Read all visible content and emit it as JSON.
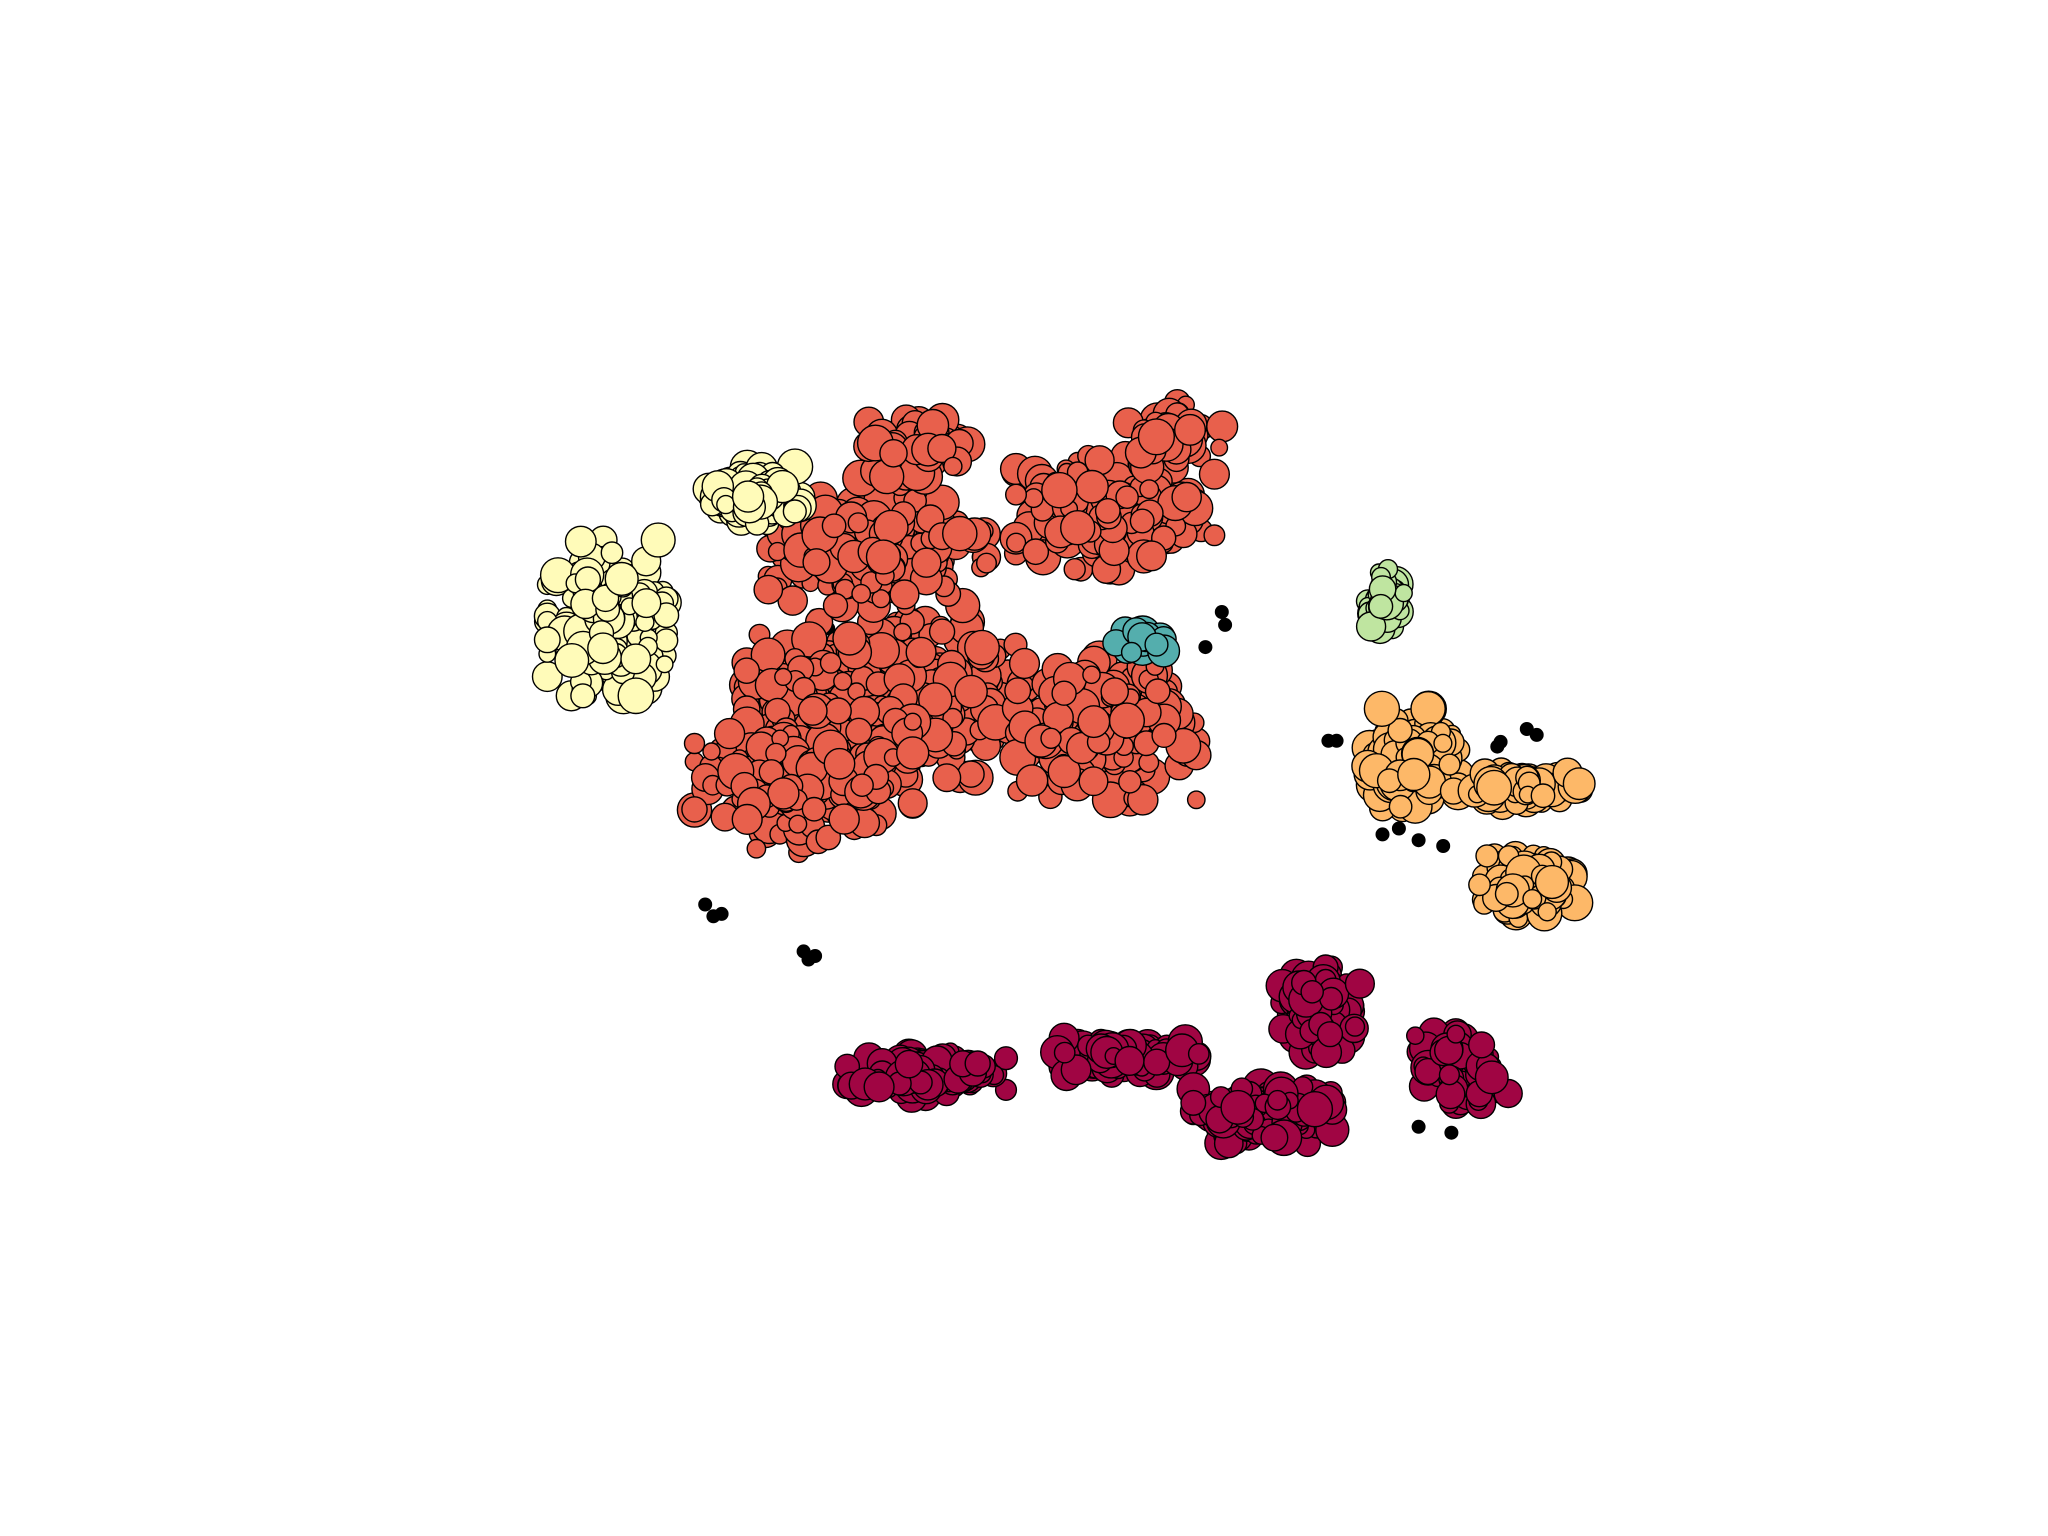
{
  "chart_data": {
    "type": "scatter",
    "title": "",
    "xlabel": "",
    "ylabel": "",
    "axes_visible": false,
    "grid": false,
    "legend": "none",
    "xlim": [
      0,
      100
    ],
    "ylim": [
      0,
      100
    ],
    "series": [
      {
        "key": "cluster-red",
        "color": "#e8604c",
        "marker": "circle",
        "approx_point_count": 1650,
        "regions": [
          {
            "cx": 41.5,
            "cy": 56.0,
            "sx": 7.0,
            "sy": 5.5,
            "n": 600
          },
          {
            "cx": 36.5,
            "cy": 49.0,
            "sx": 5.5,
            "sy": 5.0,
            "n": 220
          },
          {
            "cx": 41.0,
            "cy": 69.5,
            "sx": 5.5,
            "sy": 4.5,
            "n": 260
          },
          {
            "cx": 55.0,
            "cy": 53.5,
            "sx": 4.5,
            "sy": 5.0,
            "n": 230
          },
          {
            "cx": 55.5,
            "cy": 72.0,
            "sx": 5.0,
            "sy": 4.0,
            "n": 230
          },
          {
            "cx": 43.5,
            "cy": 77.5,
            "sx": 2.5,
            "sy": 2.0,
            "n": 70
          },
          {
            "cx": 59.0,
            "cy": 79.0,
            "sx": 2.5,
            "sy": 2.0,
            "n": 50
          }
        ]
      },
      {
        "key": "cluster-yellow",
        "color": "#fffbb9",
        "marker": "circle",
        "approx_point_count": 300,
        "regions": [
          {
            "cx": 24.5,
            "cy": 63.0,
            "sx": 3.0,
            "sy": 5.5,
            "n": 190
          },
          {
            "cx": 33.5,
            "cy": 73.5,
            "sx": 2.3,
            "sy": 2.0,
            "n": 110
          }
        ]
      },
      {
        "key": "cluster-maroon",
        "color": "#a00543",
        "marker": "circle",
        "approx_point_count": 620,
        "regions": [
          {
            "cx": 44.0,
            "cy": 24.0,
            "sx": 4.0,
            "sy": 1.6,
            "n": 120
          },
          {
            "cx": 56.0,
            "cy": 25.5,
            "sx": 3.8,
            "sy": 1.3,
            "n": 130
          },
          {
            "cx": 64.5,
            "cy": 20.5,
            "sx": 3.5,
            "sy": 2.0,
            "n": 200
          },
          {
            "cx": 68.0,
            "cy": 29.5,
            "sx": 2.0,
            "sy": 3.0,
            "n": 100
          },
          {
            "cx": 76.5,
            "cy": 24.5,
            "sx": 2.5,
            "sy": 2.5,
            "n": 70
          }
        ]
      },
      {
        "key": "cluster-orange",
        "color": "#fdb868",
        "marker": "circle",
        "approx_point_count": 340,
        "regions": [
          {
            "cx": 73.5,
            "cy": 51.0,
            "sx": 2.4,
            "sy": 3.5,
            "n": 140
          },
          {
            "cx": 80.0,
            "cy": 48.5,
            "sx": 3.2,
            "sy": 1.2,
            "n": 80
          },
          {
            "cx": 80.5,
            "cy": 40.0,
            "sx": 2.5,
            "sy": 2.2,
            "n": 120
          }
        ]
      },
      {
        "key": "cluster-green",
        "color": "#bfe5a0",
        "marker": "circle",
        "approx_point_count": 45,
        "regions": [
          {
            "cx": 72.0,
            "cy": 64.5,
            "sx": 0.9,
            "sy": 2.2,
            "n": 45
          }
        ]
      },
      {
        "key": "cluster-teal",
        "color": "#54aead",
        "marker": "circle",
        "approx_point_count": 18,
        "regions": [
          {
            "cx": 57.0,
            "cy": 61.0,
            "sx": 1.2,
            "sy": 1.0,
            "n": 18
          }
        ]
      },
      {
        "key": "noise",
        "color": "#000000",
        "marker": "dot",
        "points": [
          [
            50.5,
            75.0
          ],
          [
            37.2,
            63.2
          ],
          [
            37.6,
            63.0
          ],
          [
            38.0,
            62.1
          ],
          [
            30.5,
            38.5
          ],
          [
            31.0,
            37.5
          ],
          [
            31.5,
            37.7
          ],
          [
            36.5,
            34.5
          ],
          [
            36.8,
            33.8
          ],
          [
            37.2,
            34.1
          ],
          [
            55.0,
            58.2
          ],
          [
            55.6,
            58.0
          ],
          [
            56.0,
            58.3
          ],
          [
            61.0,
            60.5
          ],
          [
            62.2,
            62.4
          ],
          [
            62.0,
            63.5
          ],
          [
            68.5,
            52.5
          ],
          [
            69.0,
            52.5
          ],
          [
            78.8,
            52.0
          ],
          [
            79.0,
            52.4
          ],
          [
            80.6,
            53.5
          ],
          [
            81.2,
            53.0
          ],
          [
            71.8,
            44.5
          ],
          [
            72.8,
            45.0
          ],
          [
            74.0,
            44.0
          ],
          [
            75.5,
            43.5
          ],
          [
            68.2,
            33.5
          ],
          [
            68.7,
            33.3
          ],
          [
            74.0,
            19.5
          ],
          [
            76.0,
            19.0
          ]
        ]
      }
    ]
  }
}
